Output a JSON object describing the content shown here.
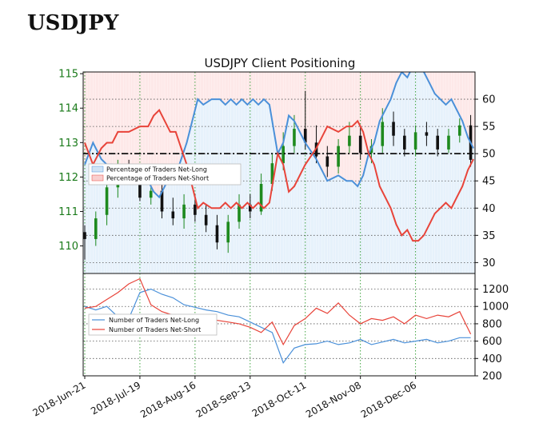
{
  "page": {
    "title": "USDJPY"
  },
  "chart_data": [
    {
      "type": "candlestick+line",
      "title": "USDJPY Client Positioning",
      "price_axis": {
        "ticks": [
          "110",
          "111",
          "112",
          "113",
          "114",
          "115"
        ],
        "ylim": [
          109.2,
          115.05
        ]
      },
      "pct_axis": {
        "ticks": [
          "30",
          "35",
          "40",
          "45",
          "50",
          "55",
          "60"
        ],
        "ylim": [
          28,
          65
        ]
      },
      "reference_line": 50,
      "legend": [
        {
          "label": "Percentage of Traders Net-Long",
          "color": "#4a90d9"
        },
        {
          "label": "Percentage of Traders Net-Short",
          "color": "#e8443a"
        }
      ],
      "pct_series": {
        "x": [
          0,
          3,
          6,
          8,
          10,
          12,
          16,
          20,
          23,
          25,
          27,
          29,
          31,
          33,
          35,
          37,
          39,
          41,
          43,
          46,
          49,
          51,
          53,
          55,
          57,
          59,
          61,
          63,
          65,
          67,
          70,
          72,
          74,
          76,
          80,
          84,
          88,
          92,
          95,
          97,
          99,
          101,
          103,
          105,
          107,
          109,
          111,
          113,
          115,
          117,
          119,
          121,
          123,
          125,
          127,
          129,
          131,
          133,
          135,
          137,
          139,
          141
        ],
        "long": [
          48,
          52,
          49,
          48,
          48,
          46,
          46,
          45,
          45,
          43,
          42,
          44,
          46,
          46,
          49,
          52,
          56,
          60,
          59,
          60,
          60,
          59,
          60,
          59,
          60,
          59,
          60,
          59,
          60,
          59,
          50,
          52,
          57,
          56,
          52,
          49,
          45,
          46,
          45,
          45,
          44,
          46,
          50,
          52,
          56,
          58,
          60,
          63,
          65,
          64,
          66,
          66,
          65,
          63,
          61,
          60,
          59,
          60,
          58,
          56,
          53,
          51
        ],
        "short": [
          52,
          48,
          51,
          52,
          52,
          54,
          54,
          55,
          55,
          57,
          58,
          56,
          54,
          54,
          51,
          48,
          44,
          40,
          41,
          40,
          40,
          41,
          40,
          41,
          40,
          41,
          40,
          41,
          40,
          41,
          50,
          48,
          43,
          44,
          48,
          51,
          55,
          54,
          55,
          55,
          56,
          54,
          50,
          48,
          44,
          42,
          40,
          37,
          35,
          36,
          34,
          34,
          35,
          37,
          39,
          40,
          41,
          40,
          42,
          44,
          47,
          49
        ]
      },
      "candles": {
        "x": [
          0,
          4,
          8,
          12,
          16,
          20,
          24,
          28,
          32,
          36,
          40,
          44,
          48,
          52,
          56,
          60,
          64,
          68,
          72,
          76,
          80,
          84,
          88,
          92,
          96,
          100,
          104,
          108,
          112,
          116,
          120,
          124,
          128,
          132,
          136,
          140
        ],
        "open": [
          110.4,
          110.2,
          110.9,
          111.7,
          112.2,
          112.0,
          111.4,
          111.6,
          111.0,
          110.8,
          111.2,
          110.9,
          110.6,
          110.1,
          110.7,
          111.2,
          111.0,
          111.8,
          112.4,
          112.9,
          113.4,
          113.0,
          112.6,
          112.3,
          112.9,
          113.2,
          112.7,
          112.9,
          113.6,
          113.2,
          112.8,
          113.3,
          113.2,
          112.8,
          113.2,
          113.5
        ],
        "close": [
          110.2,
          110.8,
          111.7,
          112.2,
          112.0,
          111.4,
          111.6,
          111.0,
          110.8,
          111.2,
          110.9,
          110.6,
          110.1,
          110.7,
          111.2,
          111.0,
          111.8,
          112.4,
          112.9,
          113.4,
          113.0,
          112.6,
          112.3,
          112.9,
          113.2,
          112.7,
          112.9,
          113.6,
          113.2,
          112.8,
          113.3,
          113.2,
          112.8,
          113.2,
          113.5,
          112.5
        ],
        "high": [
          110.6,
          111.0,
          111.9,
          112.5,
          112.5,
          112.3,
          111.9,
          111.9,
          111.4,
          111.5,
          111.5,
          111.2,
          110.9,
          110.9,
          111.5,
          111.5,
          112.1,
          112.7,
          113.3,
          113.8,
          114.5,
          113.5,
          112.9,
          113.1,
          113.6,
          113.5,
          113.1,
          114.0,
          113.9,
          113.4,
          113.5,
          113.6,
          113.4,
          113.4,
          113.7,
          113.8
        ],
        "low": [
          109.6,
          110.0,
          110.6,
          111.4,
          111.8,
          111.3,
          111.2,
          110.8,
          110.6,
          110.5,
          110.7,
          110.4,
          109.9,
          109.8,
          110.5,
          110.8,
          110.9,
          111.6,
          112.2,
          112.7,
          112.8,
          112.4,
          112.0,
          112.1,
          112.7,
          112.5,
          112.4,
          112.7,
          112.9,
          112.6,
          112.6,
          112.9,
          112.6,
          112.7,
          113.0,
          112.3
        ]
      }
    },
    {
      "type": "line",
      "yaxis": {
        "ticks": [
          "200",
          "400",
          "600",
          "800",
          "1000",
          "1200"
        ],
        "ylim": [
          200,
          1380
        ]
      },
      "legend": [
        {
          "label": "Number of Traders Net-Long",
          "color": "#4a90d9"
        },
        {
          "label": "Number of Traders Net-Short",
          "color": "#e8443a"
        }
      ],
      "series": {
        "x": [
          0,
          4,
          8,
          12,
          16,
          20,
          24,
          28,
          32,
          36,
          40,
          44,
          48,
          52,
          56,
          60,
          64,
          68,
          72,
          76,
          80,
          84,
          88,
          92,
          96,
          100,
          104,
          108,
          112,
          116,
          120,
          124,
          128,
          132,
          136,
          140
        ],
        "long": [
          1000,
          960,
          1000,
          880,
          860,
          1160,
          1200,
          1140,
          1100,
          1020,
          990,
          960,
          940,
          900,
          880,
          820,
          760,
          700,
          350,
          520,
          560,
          570,
          600,
          560,
          580,
          620,
          560,
          590,
          620,
          580,
          600,
          620,
          580,
          600,
          640,
          640
        ],
        "short": [
          980,
          1000,
          1080,
          1160,
          1260,
          1320,
          1020,
          940,
          900,
          900,
          860,
          880,
          840,
          820,
          800,
          760,
          700,
          820,
          560,
          780,
          860,
          980,
          920,
          1040,
          900,
          800,
          860,
          840,
          880,
          800,
          900,
          860,
          900,
          880,
          940,
          680
        ]
      }
    }
  ],
  "x_axis": {
    "dates": [
      "2018-Jun-21",
      "2018-Jul-19",
      "2018-Aug-16",
      "2018-Sep-13",
      "2018-Oct-11",
      "2018-Nov-08",
      "2018-Dec-06"
    ],
    "n": 142,
    "positions": [
      0,
      20,
      40,
      60,
      80,
      100,
      120
    ]
  },
  "colors": {
    "long": "#4a90d9",
    "short": "#e8443a",
    "long_fill": "#e6f1fb",
    "short_fill": "#fde8e8",
    "candle_up": "#1e8a1e",
    "candle_down": "#111111",
    "grid": "#2a9a2a"
  }
}
